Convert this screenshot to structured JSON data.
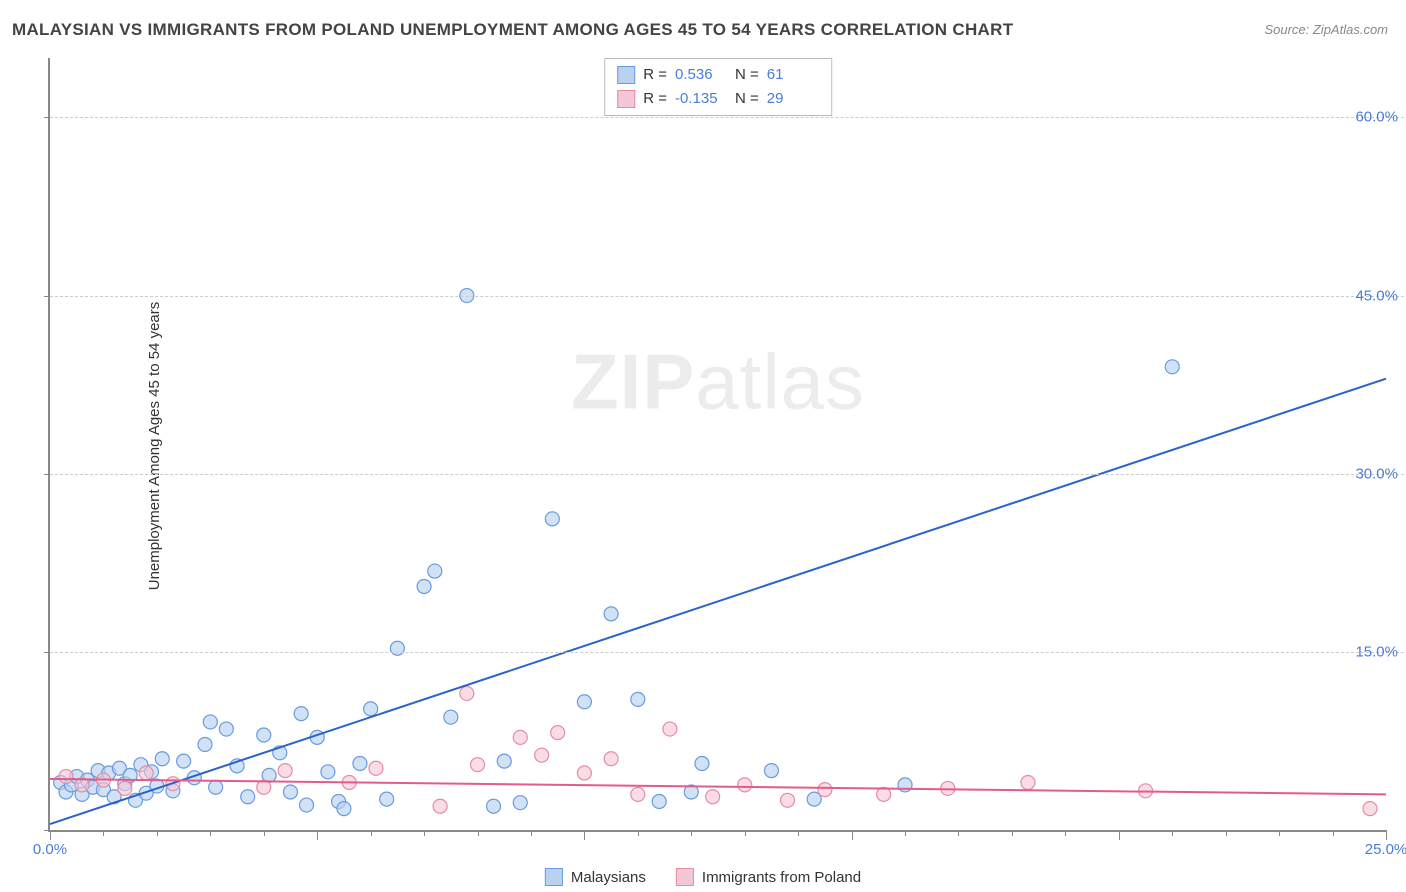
{
  "title": "MALAYSIAN VS IMMIGRANTS FROM POLAND UNEMPLOYMENT AMONG AGES 45 TO 54 YEARS CORRELATION CHART",
  "source": "Source: ZipAtlas.com",
  "y_axis_label": "Unemployment Among Ages 45 to 54 years",
  "watermark_bold": "ZIP",
  "watermark_rest": "atlas",
  "chart": {
    "type": "scatter-correlation",
    "background_color": "#ffffff",
    "grid_color": "#cccccc",
    "axis_color": "#888888",
    "tick_label_color": "#4a7dd8",
    "xlim": [
      0,
      25
    ],
    "ylim": [
      0,
      65
    ],
    "x_ticks": [
      0,
      5,
      10,
      15,
      20,
      25
    ],
    "x_tick_labels": [
      "0.0%",
      "",
      "",
      "",
      "",
      "25.0%"
    ],
    "y_ticks": [
      0,
      15,
      30,
      45,
      60
    ],
    "y_tick_labels": [
      "",
      "15.0%",
      "30.0%",
      "45.0%",
      "60.0%"
    ],
    "minor_x_ticks": [
      1,
      2,
      3,
      4,
      6,
      7,
      8,
      9,
      11,
      12,
      13,
      14,
      16,
      17,
      18,
      19,
      21,
      22,
      23,
      24
    ],
    "marker_radius": 7,
    "marker_stroke_width": 1.2,
    "line_width": 2,
    "series": [
      {
        "name": "Malaysians",
        "fill": "#b9d2f0",
        "stroke": "#6a9adf",
        "fill_opacity": 0.65,
        "line_color": "#2b62c9",
        "R": "0.536",
        "N": "61",
        "trend": {
          "x1": 0,
          "y1": 0.5,
          "x2": 25,
          "y2": 38.0
        },
        "points": [
          [
            0.2,
            4.0
          ],
          [
            0.3,
            3.2
          ],
          [
            0.4,
            3.8
          ],
          [
            0.5,
            4.5
          ],
          [
            0.6,
            3.0
          ],
          [
            0.7,
            4.2
          ],
          [
            0.8,
            3.6
          ],
          [
            0.9,
            5.0
          ],
          [
            1.0,
            3.4
          ],
          [
            1.1,
            4.8
          ],
          [
            1.2,
            2.8
          ],
          [
            1.3,
            5.2
          ],
          [
            1.4,
            3.9
          ],
          [
            1.5,
            4.6
          ],
          [
            1.6,
            2.5
          ],
          [
            1.7,
            5.5
          ],
          [
            1.8,
            3.1
          ],
          [
            1.9,
            4.9
          ],
          [
            2.0,
            3.7
          ],
          [
            2.1,
            6.0
          ],
          [
            2.3,
            3.3
          ],
          [
            2.5,
            5.8
          ],
          [
            2.7,
            4.4
          ],
          [
            2.9,
            7.2
          ],
          [
            3.0,
            9.1
          ],
          [
            3.1,
            3.6
          ],
          [
            3.3,
            8.5
          ],
          [
            3.5,
            5.4
          ],
          [
            3.7,
            2.8
          ],
          [
            4.0,
            8.0
          ],
          [
            4.1,
            4.6
          ],
          [
            4.3,
            6.5
          ],
          [
            4.5,
            3.2
          ],
          [
            4.7,
            9.8
          ],
          [
            4.8,
            2.1
          ],
          [
            5.0,
            7.8
          ],
          [
            5.2,
            4.9
          ],
          [
            5.4,
            2.4
          ],
          [
            5.5,
            1.8
          ],
          [
            5.8,
            5.6
          ],
          [
            6.0,
            10.2
          ],
          [
            6.3,
            2.6
          ],
          [
            6.5,
            15.3
          ],
          [
            7.0,
            20.5
          ],
          [
            7.2,
            21.8
          ],
          [
            7.5,
            9.5
          ],
          [
            7.8,
            45.0
          ],
          [
            8.3,
            2.0
          ],
          [
            8.5,
            5.8
          ],
          [
            8.8,
            2.3
          ],
          [
            9.4,
            26.2
          ],
          [
            10.0,
            10.8
          ],
          [
            10.5,
            18.2
          ],
          [
            11.0,
            11.0
          ],
          [
            11.4,
            2.4
          ],
          [
            12.0,
            3.2
          ],
          [
            12.2,
            5.6
          ],
          [
            13.5,
            5.0
          ],
          [
            14.3,
            2.6
          ],
          [
            21.0,
            39.0
          ],
          [
            16.0,
            3.8
          ]
        ]
      },
      {
        "name": "Immigrants from Poland",
        "fill": "#f4c7d4",
        "stroke": "#e88ba6",
        "fill_opacity": 0.6,
        "line_color": "#e35b8a",
        "R": "-0.135",
        "N": "29",
        "trend": {
          "x1": 0,
          "y1": 4.3,
          "x2": 25,
          "y2": 3.0
        },
        "points": [
          [
            0.3,
            4.5
          ],
          [
            0.6,
            3.8
          ],
          [
            1.0,
            4.2
          ],
          [
            1.4,
            3.5
          ],
          [
            1.8,
            4.8
          ],
          [
            2.3,
            3.9
          ],
          [
            4.0,
            3.6
          ],
          [
            4.4,
            5.0
          ],
          [
            5.6,
            4.0
          ],
          [
            6.1,
            5.2
          ],
          [
            7.3,
            2.0
          ],
          [
            7.8,
            11.5
          ],
          [
            8.0,
            5.5
          ],
          [
            8.8,
            7.8
          ],
          [
            9.2,
            6.3
          ],
          [
            9.5,
            8.2
          ],
          [
            10.0,
            4.8
          ],
          [
            10.5,
            6.0
          ],
          [
            11.0,
            3.0
          ],
          [
            11.6,
            8.5
          ],
          [
            12.4,
            2.8
          ],
          [
            13.0,
            3.8
          ],
          [
            13.8,
            2.5
          ],
          [
            14.5,
            3.4
          ],
          [
            15.6,
            3.0
          ],
          [
            16.8,
            3.5
          ],
          [
            18.3,
            4.0
          ],
          [
            20.5,
            3.3
          ],
          [
            24.7,
            1.8
          ]
        ]
      }
    ]
  },
  "stats_box": {
    "rows": [
      {
        "swatch_fill": "#b9d2f0",
        "swatch_stroke": "#6a9adf",
        "R_label": "R  =",
        "R_val": "0.536",
        "N_label": "N  =",
        "N_val": "61"
      },
      {
        "swatch_fill": "#f4c7d4",
        "swatch_stroke": "#e88ba6",
        "R_label": "R  =",
        "R_val": "-0.135",
        "N_label": "N  =",
        "N_val": "29"
      }
    ]
  },
  "legend": {
    "items": [
      {
        "fill": "#b9d2f0",
        "stroke": "#6a9adf",
        "label": "Malaysians"
      },
      {
        "fill": "#f4c7d4",
        "stroke": "#e88ba6",
        "label": "Immigrants from Poland"
      }
    ]
  }
}
